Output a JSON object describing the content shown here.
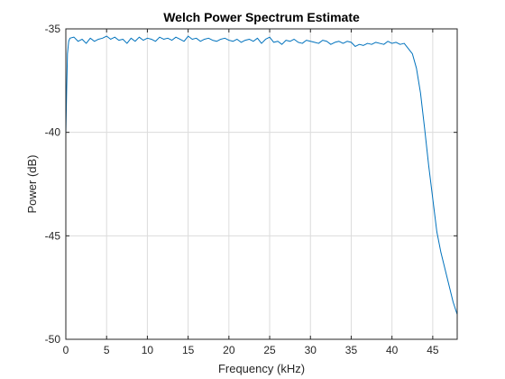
{
  "chart_data": {
    "type": "line",
    "title": "Welch Power Spectrum Estimate",
    "xlabel": "Frequency (kHz)",
    "ylabel": "Power (dB)",
    "xlim": [
      0,
      48
    ],
    "ylim": [
      -50,
      -35
    ],
    "xticks": [
      0,
      5,
      10,
      15,
      20,
      25,
      30,
      35,
      40,
      45
    ],
    "yticks": [
      -50,
      -45,
      -40,
      -35
    ],
    "xtick_labels": [
      "0",
      "5",
      "10",
      "15",
      "20",
      "25",
      "30",
      "35",
      "40",
      "45"
    ],
    "ytick_labels": [
      "-50",
      "-45",
      "-40",
      "-35"
    ],
    "grid": true,
    "series": [
      {
        "color": "#0072BD",
        "x": [
          0,
          0.1,
          0.2,
          0.35,
          0.5,
          1,
          1.5,
          2,
          2.5,
          3,
          3.5,
          4,
          4.5,
          5,
          5.5,
          6,
          6.5,
          7,
          7.5,
          8,
          8.5,
          9,
          9.5,
          10,
          10.5,
          11,
          11.5,
          12,
          12.5,
          13,
          13.5,
          14,
          14.5,
          15,
          15.5,
          16,
          16.5,
          17,
          17.5,
          18,
          18.5,
          19,
          19.5,
          20,
          20.5,
          21,
          21.5,
          22,
          22.5,
          23,
          23.5,
          24,
          24.5,
          25,
          25.5,
          26,
          26.5,
          27,
          27.5,
          28,
          28.5,
          29,
          29.5,
          30,
          30.5,
          31,
          31.5,
          32,
          32.5,
          33,
          33.5,
          34,
          34.5,
          35,
          35.5,
          36,
          36.5,
          37,
          37.5,
          38,
          38.5,
          39,
          39.5,
          40,
          40.5,
          41,
          41.5,
          42,
          42.5,
          43,
          43.5,
          44,
          44.5,
          45,
          45.5,
          46,
          46.5,
          47,
          47.5,
          48
        ],
        "y": [
          -40.1,
          -38.0,
          -36.2,
          -35.6,
          -35.45,
          -35.4,
          -35.6,
          -35.5,
          -35.7,
          -35.45,
          -35.6,
          -35.5,
          -35.45,
          -35.35,
          -35.5,
          -35.4,
          -35.55,
          -35.5,
          -35.7,
          -35.45,
          -35.6,
          -35.4,
          -35.55,
          -35.45,
          -35.5,
          -35.6,
          -35.4,
          -35.5,
          -35.45,
          -35.55,
          -35.4,
          -35.5,
          -35.6,
          -35.35,
          -35.5,
          -35.45,
          -35.6,
          -35.5,
          -35.45,
          -35.55,
          -35.6,
          -35.5,
          -35.45,
          -35.55,
          -35.6,
          -35.5,
          -35.65,
          -35.55,
          -35.5,
          -35.6,
          -35.45,
          -35.7,
          -35.5,
          -35.4,
          -35.65,
          -35.6,
          -35.75,
          -35.55,
          -35.6,
          -35.5,
          -35.65,
          -35.7,
          -35.55,
          -35.6,
          -35.65,
          -35.7,
          -35.55,
          -35.6,
          -35.75,
          -35.65,
          -35.6,
          -35.7,
          -35.6,
          -35.65,
          -35.85,
          -35.75,
          -35.8,
          -35.7,
          -35.75,
          -35.65,
          -35.7,
          -35.75,
          -35.6,
          -35.7,
          -35.65,
          -35.75,
          -35.7,
          -35.95,
          -36.2,
          -36.9,
          -38.1,
          -39.8,
          -41.6,
          -43.2,
          -44.8,
          -45.8,
          -46.6,
          -47.4,
          -48.2,
          -48.8
        ]
      }
    ]
  }
}
